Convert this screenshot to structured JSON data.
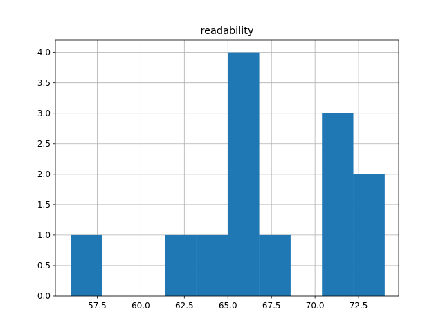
{
  "chart_data": {
    "type": "bar",
    "subtype": "histogram",
    "title": "readability",
    "xlabel": "",
    "ylabel": "",
    "grid": true,
    "legend": "none",
    "bar_color": "#1f77b4",
    "grid_color": "#b0b0b0",
    "xlim": [
      55.1,
      74.8
    ],
    "ylim": [
      0,
      4.2
    ],
    "bins": [
      {
        "x0": 56.0,
        "x1": 57.8,
        "count": 1
      },
      {
        "x0": 57.8,
        "x1": 59.6,
        "count": 0
      },
      {
        "x0": 59.6,
        "x1": 61.4,
        "count": 0
      },
      {
        "x0": 61.4,
        "x1": 63.2,
        "count": 1
      },
      {
        "x0": 63.2,
        "x1": 65.0,
        "count": 1
      },
      {
        "x0": 65.0,
        "x1": 66.8,
        "count": 4
      },
      {
        "x0": 66.8,
        "x1": 68.6,
        "count": 1
      },
      {
        "x0": 68.6,
        "x1": 70.4,
        "count": 0
      },
      {
        "x0": 70.4,
        "x1": 72.2,
        "count": 3
      },
      {
        "x0": 72.2,
        "x1": 74.0,
        "count": 2
      }
    ],
    "xticks": [
      57.5,
      60.0,
      62.5,
      65.0,
      67.5,
      70.0,
      72.5
    ],
    "xtick_labels": [
      "57.5",
      "60.0",
      "62.5",
      "65.0",
      "67.5",
      "70.0",
      "72.5"
    ],
    "yticks": [
      0.0,
      0.5,
      1.0,
      1.5,
      2.0,
      2.5,
      3.0,
      3.5,
      4.0
    ],
    "ytick_labels": [
      "0.0",
      "0.5",
      "1.0",
      "1.5",
      "2.0",
      "2.5",
      "3.0",
      "3.5",
      "4.0"
    ]
  }
}
